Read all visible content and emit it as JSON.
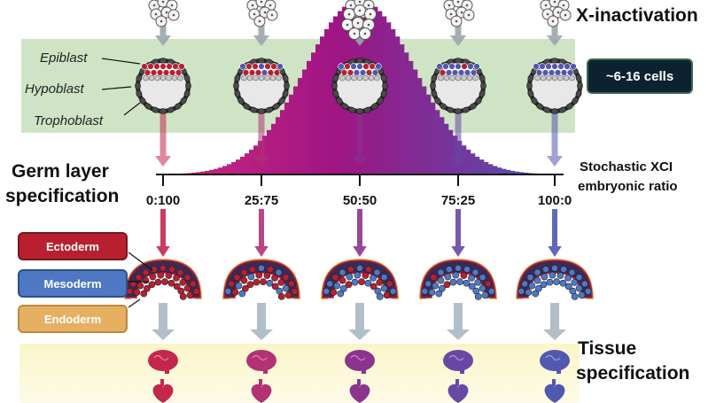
{
  "labels": {
    "x_inactivation": "X-inactivation",
    "cells_badge": "~6-16 cells",
    "germ_layer_line1": "Germ layer",
    "germ_layer_line2": "specification",
    "xci_line1": "Stochastic XCI",
    "xci_line2": "embryonic ratio",
    "tissue_line1": "Tissue",
    "tissue_line2": "specification"
  },
  "embryo_parts": [
    "Epiblast",
    "Hypoblast",
    "Trophoblast"
  ],
  "germ_layers": [
    {
      "name": "Ectoderm",
      "color": "#b8202f"
    },
    {
      "name": "Mesoderm",
      "color": "#4f78c4"
    },
    {
      "name": "Endoderm",
      "color": "#e6b062"
    }
  ],
  "ratios": [
    "0:100",
    "25:75",
    "50:50",
    "75:25",
    "100:0"
  ],
  "stage_colors": [
    "#c4274c",
    "#b23274",
    "#8c338e",
    "#6848a4",
    "#5158b0"
  ],
  "colors": {
    "green_band": "#cde3c4",
    "yellow_band": "#fbf6cf",
    "magenta": "#b0156f",
    "blue": "#5a55b0",
    "badge_bg": "#0d2230"
  }
}
